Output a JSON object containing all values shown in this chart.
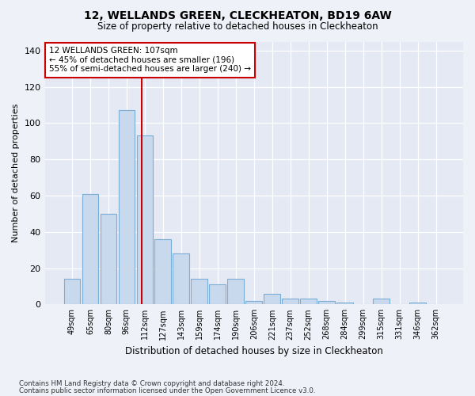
{
  "title": "12, WELLANDS GREEN, CLECKHEATON, BD19 6AW",
  "subtitle": "Size of property relative to detached houses in Cleckheaton",
  "xlabel": "Distribution of detached houses by size in Cleckheaton",
  "ylabel": "Number of detached properties",
  "categories": [
    "49sqm",
    "65sqm",
    "80sqm",
    "96sqm",
    "112sqm",
    "127sqm",
    "143sqm",
    "159sqm",
    "174sqm",
    "190sqm",
    "206sqm",
    "221sqm",
    "237sqm",
    "252sqm",
    "268sqm",
    "284sqm",
    "299sqm",
    "315sqm",
    "331sqm",
    "346sqm",
    "362sqm"
  ],
  "values": [
    14,
    61,
    50,
    107,
    93,
    36,
    28,
    14,
    11,
    14,
    2,
    6,
    3,
    3,
    2,
    1,
    0,
    3,
    0,
    1,
    0
  ],
  "bar_color": "#c9d9ed",
  "bar_edge_color": "#7aaed6",
  "vline_pos": 3.85,
  "vline_color": "#cc0000",
  "annotation_title": "12 WELLANDS GREEN: 107sqm",
  "annotation_line1": "← 45% of detached houses are smaller (196)",
  "annotation_line2": "55% of semi-detached houses are larger (240) →",
  "ylim": [
    0,
    145
  ],
  "yticks": [
    0,
    20,
    40,
    60,
    80,
    100,
    120,
    140
  ],
  "footnote1": "Contains HM Land Registry data © Crown copyright and database right 2024.",
  "footnote2": "Contains public sector information licensed under the Open Government Licence v3.0.",
  "bg_color": "#eef1f8",
  "plot_bg_color": "#e4e9f4"
}
